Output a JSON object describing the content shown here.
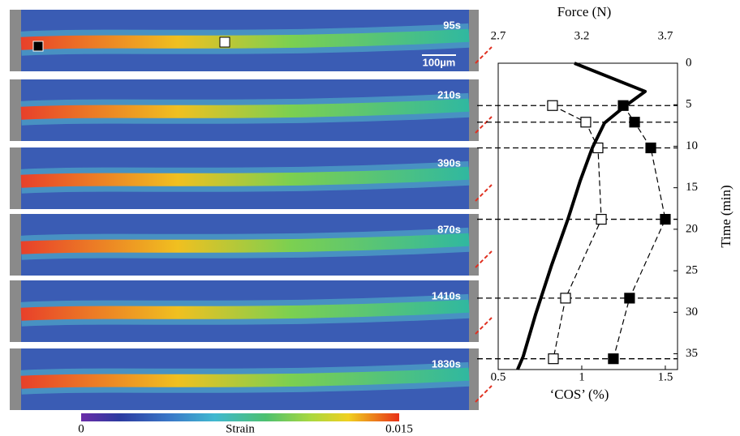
{
  "chart_data": {
    "type": "line",
    "panels": [
      "95s",
      "210s",
      "390s",
      "870s",
      "1410s",
      "1830s"
    ],
    "scale_bar": "100µm",
    "colorbar": {
      "label": "Strain",
      "lim": [
        0,
        0.015
      ],
      "ticks": [
        0,
        0.015
      ]
    },
    "xlabel": "‘COS’ (%)",
    "x2label": "Force (N)",
    "ylabel": "Time (min)",
    "xlim": [
      0.5,
      1.573
    ],
    "xticks": [
      0.5,
      1,
      1.5
    ],
    "x2lim": [
      2.7,
      3.773
    ],
    "x2ticks": [
      2.7,
      3.2,
      3.7
    ],
    "ylim": [
      0,
      36.9
    ],
    "yticks": [
      0,
      5,
      10,
      15,
      20,
      25,
      30,
      35
    ],
    "y_inverted": true,
    "hlines": [
      5.1,
      7.1,
      10.2,
      18.8,
      28.3,
      35.6
    ],
    "series": [
      {
        "color": "#ffffff",
        "marker": "square",
        "x": [
          0.825,
          1.024,
          1.097,
          1.117,
          0.903,
          0.83
        ],
        "y": [
          5.1,
          7.1,
          10.2,
          18.8,
          28.3,
          35.6
        ]
      },
      {
        "color": "#000000",
        "marker": "square",
        "x": [
          1.248,
          1.316,
          1.413,
          1.5,
          1.286,
          1.189
        ],
        "y": [
          5.1,
          7.1,
          10.2,
          18.8,
          28.3,
          35.6
        ]
      },
      {
        "color": "#000000",
        "axis": "x2",
        "x": [
          3.156,
          3.579,
          3.457,
          3.336,
          3.263,
          3.19,
          3.117,
          3.02,
          2.923,
          2.85,
          2.816
        ],
        "y": [
          0,
          3.4,
          5.2,
          7.2,
          10.2,
          14.2,
          18.8,
          24.3,
          30.3,
          35.3,
          36.9
        ]
      }
    ]
  }
}
